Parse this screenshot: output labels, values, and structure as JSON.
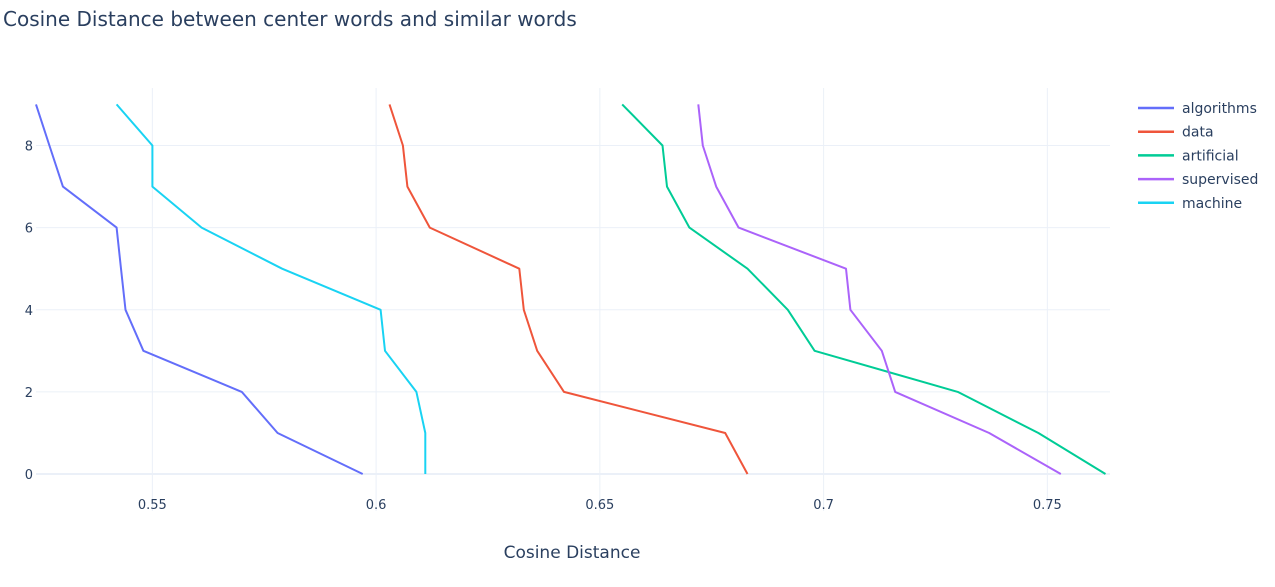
{
  "chart_data": {
    "type": "line",
    "title": "Cosine Distance between center words and similar words",
    "xlabel": "Cosine Distance",
    "ylabel": "",
    "xlim": [
      0.524,
      0.764
    ],
    "ylim": [
      -0.9,
      9.4
    ],
    "x_ticks": [
      0.55,
      0.6,
      0.65,
      0.7,
      0.75
    ],
    "x_tick_labels": [
      "0.55",
      "0.6",
      "0.65",
      "0.7",
      "0.75"
    ],
    "y_ticks": [
      0,
      2,
      4,
      6,
      8
    ],
    "y_tick_labels": [
      "0",
      "2",
      "4",
      "6",
      "8"
    ],
    "grid": true,
    "legend": "top-right",
    "y": [
      0,
      1,
      2,
      3,
      4,
      5,
      6,
      7,
      8,
      9
    ],
    "series": [
      {
        "name": "algorithms",
        "color": "#636efa",
        "x": [
          0.597,
          0.578,
          0.57,
          0.548,
          0.544,
          0.543,
          0.542,
          0.53,
          0.527,
          0.524
        ]
      },
      {
        "name": "data",
        "color": "#ef553b",
        "x": [
          0.683,
          0.678,
          0.642,
          0.636,
          0.633,
          0.632,
          0.612,
          0.607,
          0.606,
          0.603
        ]
      },
      {
        "name": "artificial",
        "color": "#00cc96",
        "x": [
          0.763,
          0.748,
          0.73,
          0.698,
          0.692,
          0.683,
          0.67,
          0.665,
          0.664,
          0.655
        ]
      },
      {
        "name": "supervised",
        "color": "#ab63fa",
        "x": [
          0.753,
          0.737,
          0.716,
          0.713,
          0.706,
          0.705,
          0.681,
          0.676,
          0.673,
          0.672
        ]
      },
      {
        "name": "machine",
        "color": "#19d3f3",
        "x": [
          0.611,
          0.611,
          0.609,
          0.602,
          0.601,
          0.579,
          0.561,
          0.55,
          0.55,
          0.542
        ]
      }
    ]
  }
}
